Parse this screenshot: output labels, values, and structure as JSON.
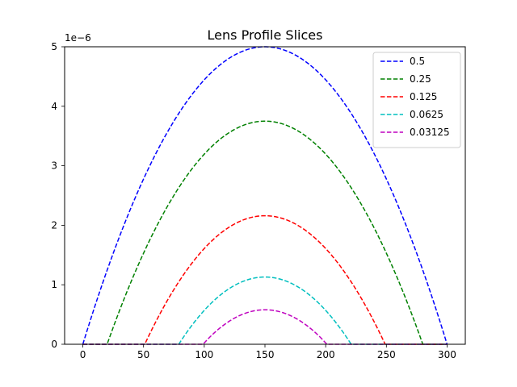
{
  "chart_data": {
    "type": "line",
    "title": "Lens Profile Slices",
    "xlabel": "",
    "ylabel": "",
    "xlim": [
      -15,
      315
    ],
    "ylim": [
      0,
      5
    ],
    "y_multiplier": "1e−6",
    "x_ticks": [
      0,
      50,
      100,
      150,
      200,
      250,
      300
    ],
    "y_ticks": [
      0,
      1,
      2,
      3,
      4,
      5
    ],
    "legend_position": "top-right",
    "grid": false,
    "line_style": "dashed",
    "center": 150,
    "series": [
      {
        "name": "0.5",
        "color": "#0000ff",
        "peak": 5.0,
        "x_start": 0,
        "x_end": 300
      },
      {
        "name": "0.25",
        "color": "#008000",
        "peak": 3.75,
        "x_start": 20,
        "x_end": 280
      },
      {
        "name": "0.125",
        "color": "#ff0000",
        "peak": 2.16,
        "x_start": 51,
        "x_end": 249
      },
      {
        "name": "0.0625",
        "color": "#00bfbf",
        "peak": 1.13,
        "x_start": 79,
        "x_end": 221
      },
      {
        "name": "0.03125",
        "color": "#bf00bf",
        "peak": 0.58,
        "x_start": 99,
        "x_end": 201
      }
    ]
  }
}
